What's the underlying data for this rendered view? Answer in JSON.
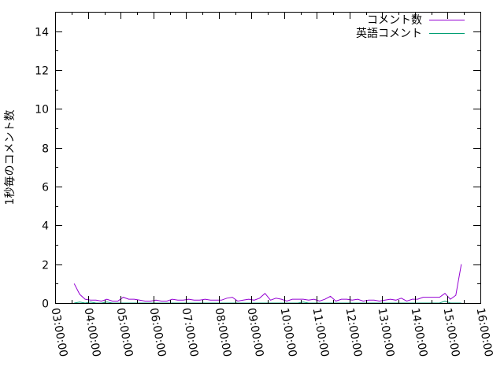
{
  "chart_data": {
    "type": "line",
    "title": "",
    "xlabel": "",
    "ylabel": "1秒毎のコメント数",
    "xlim": [
      "03:00:00",
      "16:00:00"
    ],
    "ylim": [
      0,
      15
    ],
    "grid": false,
    "legend_placement": "top-right",
    "x_tick_labels": [
      "03:00:00",
      "04:00:00",
      "05:00:00",
      "06:00:00",
      "07:00:00",
      "08:00:00",
      "09:00:00",
      "10:00:00",
      "11:00:00",
      "12:00:00",
      "13:00:00",
      "14:00:00",
      "15:00:00",
      "16:00:00"
    ],
    "y_tick_labels": [
      "0",
      "2",
      "4",
      "6",
      "8",
      "10",
      "12",
      "14"
    ],
    "x": [
      "03:35",
      "03:45",
      "03:55",
      "04:05",
      "04:15",
      "04:25",
      "04:35",
      "04:45",
      "04:55",
      "05:05",
      "05:15",
      "05:25",
      "05:35",
      "05:45",
      "05:55",
      "06:05",
      "06:15",
      "06:25",
      "06:35",
      "06:45",
      "06:55",
      "07:05",
      "07:15",
      "07:25",
      "07:35",
      "07:45",
      "07:55",
      "08:05",
      "08:15",
      "08:25",
      "08:35",
      "08:45",
      "08:55",
      "09:05",
      "09:15",
      "09:25",
      "09:35",
      "09:45",
      "09:55",
      "10:05",
      "10:15",
      "10:25",
      "10:35",
      "10:45",
      "10:55",
      "11:05",
      "11:15",
      "11:25",
      "11:35",
      "11:45",
      "11:55",
      "12:05",
      "12:15",
      "12:25",
      "12:35",
      "12:45",
      "12:55",
      "13:05",
      "13:15",
      "13:25",
      "13:35",
      "13:45",
      "13:55",
      "14:05",
      "14:15",
      "14:25",
      "14:35",
      "14:45",
      "14:55",
      "15:05",
      "15:15",
      "15:25"
    ],
    "series": [
      {
        "name": "コメント数",
        "color": "#9400d3",
        "values": [
          1.0,
          0.45,
          0.2,
          0.15,
          0.15,
          0.1,
          0.2,
          0.1,
          0.1,
          0.3,
          0.2,
          0.2,
          0.15,
          0.1,
          0.1,
          0.15,
          0.1,
          0.1,
          0.2,
          0.15,
          0.15,
          0.2,
          0.15,
          0.15,
          0.2,
          0.15,
          0.15,
          0.15,
          0.25,
          0.3,
          0.1,
          0.15,
          0.2,
          0.15,
          0.25,
          0.5,
          0.15,
          0.25,
          0.2,
          0.1,
          0.2,
          0.2,
          0.2,
          0.15,
          0.2,
          0.1,
          0.2,
          0.35,
          0.1,
          0.2,
          0.2,
          0.15,
          0.2,
          0.1,
          0.15,
          0.15,
          0.1,
          0.15,
          0.2,
          0.15,
          0.25,
          0.1,
          0.2,
          0.2,
          0.3,
          0.3,
          0.3,
          0.3,
          0.5,
          0.2,
          0.4,
          2.0
        ]
      },
      {
        "name": "英語コメント",
        "color": "#009e73",
        "values": [
          0,
          0.05,
          0,
          0.05,
          0,
          0,
          0.05,
          0,
          0,
          0,
          0,
          0,
          0,
          0,
          0,
          0,
          0,
          0,
          0,
          0,
          0,
          0,
          0,
          0,
          0,
          0,
          0,
          0,
          0,
          0,
          0,
          0,
          0,
          0,
          0,
          0,
          0,
          0,
          0,
          0,
          0,
          0,
          0.05,
          0,
          0,
          0,
          0,
          0,
          0,
          0,
          0,
          0,
          0,
          0,
          0,
          0,
          0,
          0,
          0,
          0,
          0,
          0,
          0,
          0,
          0,
          0,
          0,
          0,
          0.1,
          0,
          0,
          0
        ]
      }
    ]
  }
}
